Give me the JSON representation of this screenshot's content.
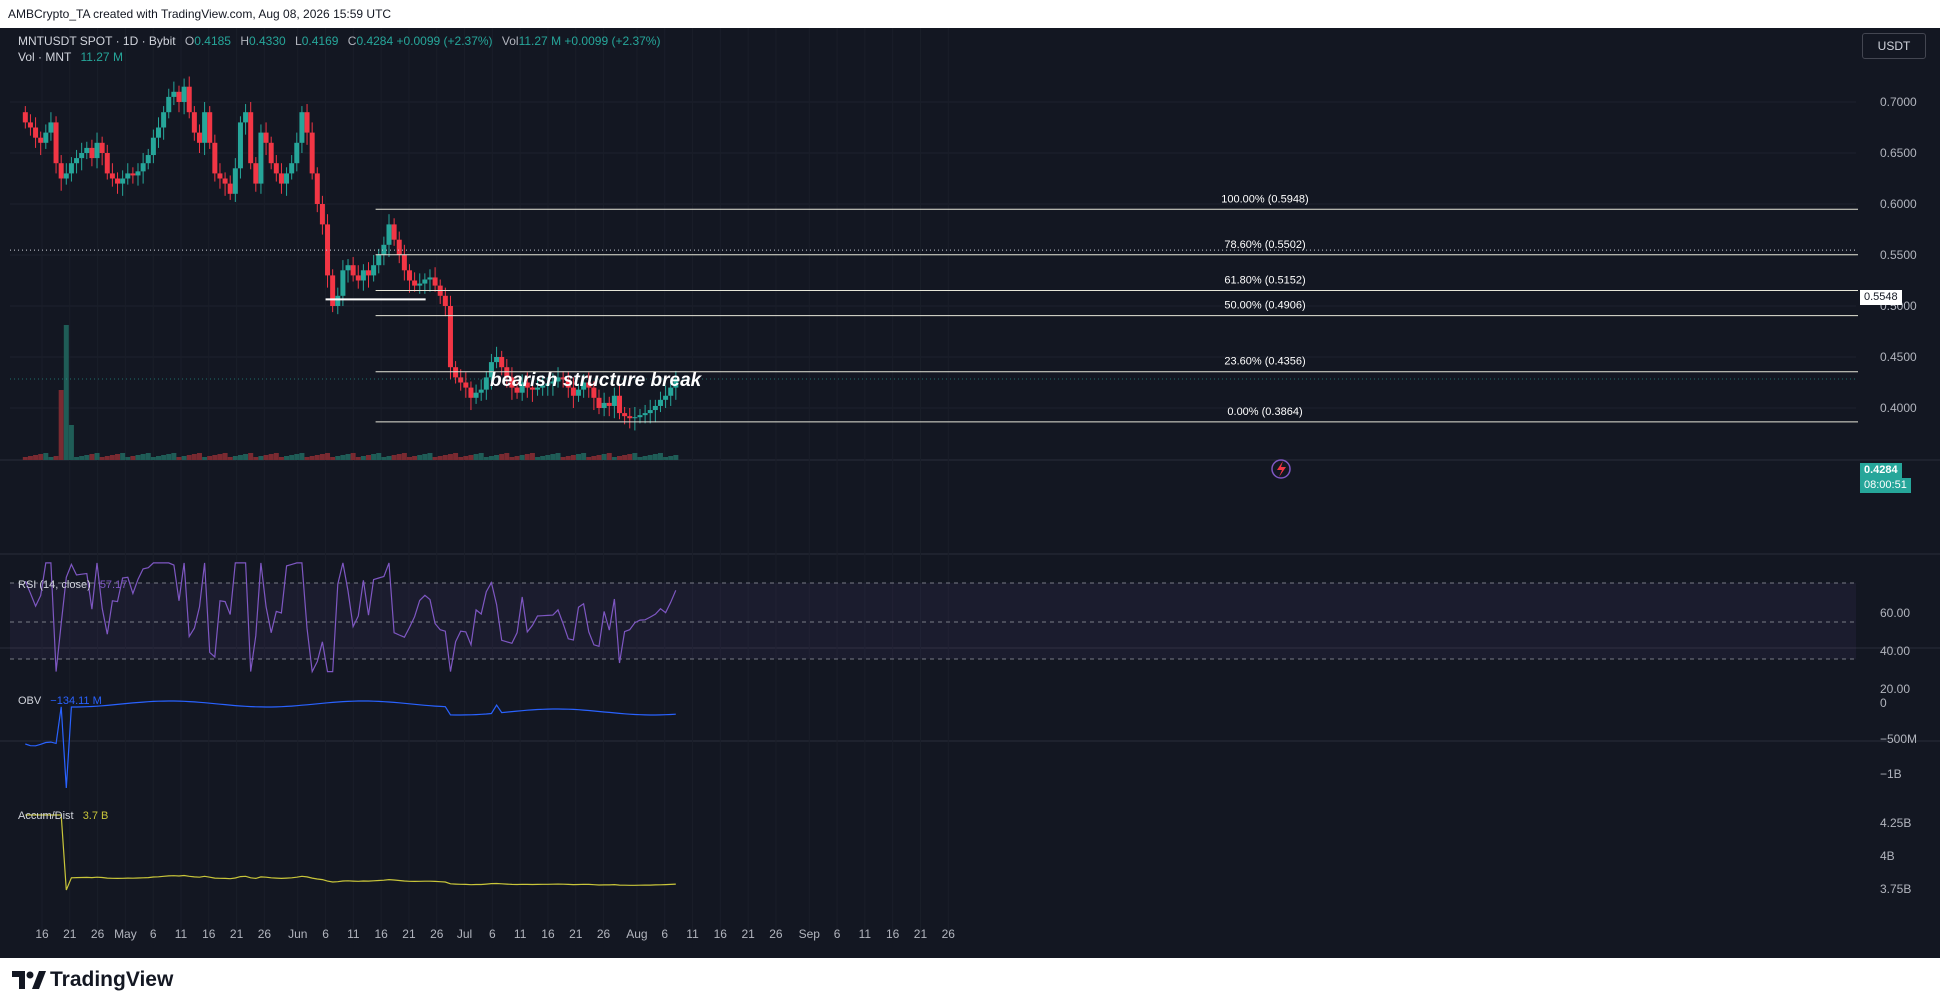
{
  "header": {
    "text": "AMBCrypto_TA created with TradingView.com, Aug 08, 2026 15:59 UTC"
  },
  "legend": {
    "symbol": "MNTUSDT SPOT · 1D · Bybit",
    "o_label": "O",
    "o": "0.4185",
    "h_label": "H",
    "h": "0.4330",
    "l_label": "L",
    "l": "0.4169",
    "c_label": "C",
    "c": "0.4284",
    "change": "+0.0099 (+2.37%)",
    "vol_label": "Vol",
    "vol": "11.27 M",
    "vol_change": "+0.0099 (+2.37%)",
    "vol_row_label": "Vol · MNT",
    "vol_row_value": "11.27 M"
  },
  "currency": "USDT",
  "price_tags": {
    "dotted_level": "0.5548",
    "last_price": "0.4284",
    "countdown": "08:00:51"
  },
  "annotation": "bearish structure break",
  "fib_levels": [
    {
      "label": "100.00% (0.5948)",
      "price": 0.5948
    },
    {
      "label": "78.60% (0.5502)",
      "price": 0.5502
    },
    {
      "label": "61.80% (0.5152)",
      "price": 0.5152
    },
    {
      "label": "50.00% (0.4906)",
      "price": 0.4906
    },
    {
      "label": "23.60% (0.4356)",
      "price": 0.4356
    },
    {
      "label": "0.00% (0.3864)",
      "price": 0.3864
    }
  ],
  "indicators": {
    "rsi": {
      "label": "RSI (14, close)",
      "value": "57.17",
      "ticks": [
        "60.00",
        "40.00",
        "20.00"
      ]
    },
    "obv": {
      "label": "OBV",
      "value": "−134.11 M",
      "ticks": [
        "0",
        "−500M",
        "−1B"
      ]
    },
    "ad": {
      "label": "Accum/Dist",
      "value": "3.7 B",
      "ticks": [
        "4.25B",
        "4B",
        "3.75B"
      ]
    }
  },
  "footer": {
    "brand": "TradingView"
  },
  "colors": {
    "bg": "#131722",
    "up": "#26a69a",
    "down": "#f23645",
    "rsi": "#7e57c2",
    "obv": "#2962ff",
    "ad": "#c9c63a",
    "fib": "#e6e6d8"
  },
  "chart_data": {
    "type": "candlestick",
    "symbol": "MNTUSDT",
    "interval": "1D",
    "yaxis": {
      "ticks": [
        0.4,
        0.45,
        0.5,
        0.55,
        0.6,
        0.65,
        0.7
      ],
      "labels": [
        "0.4000",
        "0.4500",
        "0.5000",
        "0.5500",
        "0.6000",
        "0.6500",
        "0.7000"
      ],
      "range": [
        0.375,
        0.735
      ]
    },
    "xaxis": {
      "labels": [
        "16",
        "21",
        "26",
        "May",
        "6",
        "11",
        "16",
        "21",
        "26",
        "Jun",
        "6",
        "11",
        "16",
        "21",
        "26",
        "Jul",
        "6",
        "11",
        "16",
        "21",
        "26",
        "Aug",
        "6",
        "11",
        "16",
        "21",
        "26",
        "Sep",
        "6",
        "11",
        "16",
        "21",
        "26"
      ]
    },
    "start_date": "2026-04-13",
    "last_date": "2026-08-08",
    "closes": [
      0.68,
      0.675,
      0.665,
      0.66,
      0.67,
      0.68,
      0.64,
      0.625,
      0.63,
      0.64,
      0.645,
      0.65,
      0.655,
      0.645,
      0.66,
      0.65,
      0.63,
      0.625,
      0.62,
      0.625,
      0.63,
      0.628,
      0.632,
      0.64,
      0.648,
      0.665,
      0.675,
      0.69,
      0.705,
      0.71,
      0.7,
      0.715,
      0.69,
      0.67,
      0.66,
      0.69,
      0.66,
      0.63,
      0.625,
      0.62,
      0.61,
      0.635,
      0.68,
      0.69,
      0.64,
      0.62,
      0.67,
      0.66,
      0.64,
      0.63,
      0.62,
      0.63,
      0.64,
      0.66,
      0.69,
      0.67,
      0.63,
      0.6,
      0.58,
      0.53,
      0.5,
      0.51,
      0.535,
      0.54,
      0.53,
      0.525,
      0.535,
      0.53,
      0.54,
      0.55,
      0.56,
      0.58,
      0.565,
      0.55,
      0.535,
      0.525,
      0.52,
      0.522,
      0.526,
      0.528,
      0.52,
      0.51,
      0.5,
      0.44,
      0.43,
      0.425,
      0.42,
      0.41,
      0.415,
      0.418,
      0.43,
      0.445,
      0.45,
      0.44,
      0.43,
      0.42,
      0.415,
      0.425,
      0.42,
      0.418,
      0.42,
      0.422,
      0.424,
      0.426,
      0.43,
      0.428,
      0.42,
      0.412,
      0.418,
      0.425,
      0.42,
      0.41,
      0.4,
      0.405,
      0.402,
      0.412,
      0.395,
      0.392,
      0.39,
      0.391,
      0.393,
      0.395,
      0.398,
      0.402,
      0.408,
      0.412,
      0.42,
      0.4284
    ],
    "volume_spike": {
      "date": "2026-04-20",
      "note": "large volume bars"
    },
    "rsi_last": 57.17,
    "obv_last": "−134.11 M",
    "ad_last": "3.7 B"
  }
}
